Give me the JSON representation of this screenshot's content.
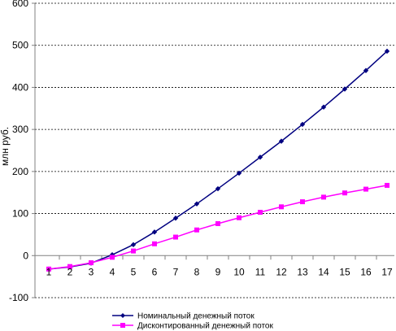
{
  "chart_data": {
    "type": "line",
    "title": "",
    "xlabel": "",
    "ylabel": "млн руб.",
    "x": [
      1,
      2,
      3,
      4,
      5,
      6,
      7,
      8,
      9,
      10,
      11,
      12,
      13,
      14,
      15,
      16,
      17
    ],
    "xlim": [
      1,
      17
    ],
    "ylim": [
      -100,
      600
    ],
    "yticks": [
      -100,
      0,
      100,
      200,
      300,
      400,
      500,
      600
    ],
    "grid": "horizontal dashed",
    "legend_position": "bottom",
    "series": [
      {
        "name": "Номинальный денежный поток",
        "color": "#000080",
        "marker": "diamond",
        "values": [
          -32,
          -27,
          -18,
          2,
          26,
          56,
          89,
          123,
          159,
          196,
          234,
          272,
          312,
          353,
          396,
          440,
          486
        ]
      },
      {
        "name": "Дисконтированный денежный поток",
        "color": "#ff00ff",
        "marker": "square",
        "values": [
          -32,
          -26,
          -17,
          -4,
          11,
          28,
          44,
          61,
          76,
          90,
          103,
          116,
          128,
          139,
          149,
          158,
          167
        ]
      }
    ]
  }
}
